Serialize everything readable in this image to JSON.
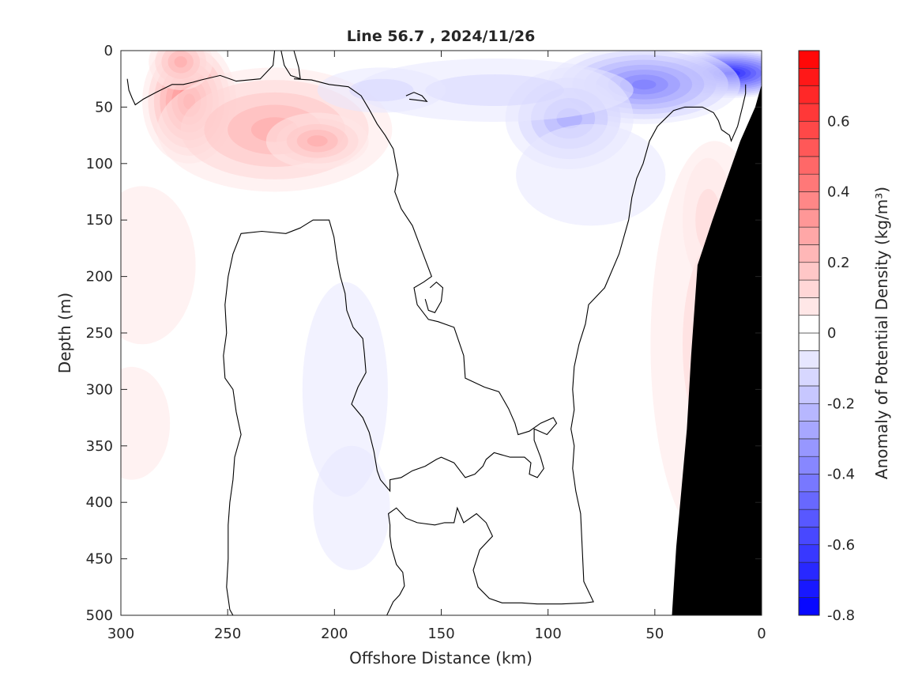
{
  "chart_data": {
    "type": "heatmap",
    "title": "Line 56.7 , 2024/11/26",
    "xlabel": "Offshore Distance (km)",
    "ylabel": "Depth (m)",
    "colorbar_label": "Anomaly of Potential Density (kg/m³)",
    "xlim": [
      300,
      0
    ],
    "ylim": [
      0,
      500
    ],
    "x_reversed": true,
    "y_reversed": true,
    "x_ticks": [
      300,
      250,
      200,
      150,
      100,
      50,
      0
    ],
    "y_ticks": [
      0,
      50,
      100,
      150,
      200,
      250,
      300,
      350,
      400,
      450,
      500
    ],
    "colorbar_range": [
      -0.8,
      0.8
    ],
    "colorbar_step": 0.05,
    "colorbar_ticks": [
      -0.8,
      -0.6,
      -0.4,
      -0.2,
      0,
      0.2,
      0.4,
      0.6
    ],
    "colors": {
      "positive": "#ff0000",
      "negative": "#0000ff",
      "zero": "#ffffff",
      "bathymetry": "#000000",
      "contour": "#000000"
    },
    "contour_level": 0,
    "blobs": [
      {
        "x": 268,
        "y": 45,
        "rx": 22,
        "ry": 55,
        "value": 0.43
      },
      {
        "x": 272,
        "y": 10,
        "rx": 15,
        "ry": 25,
        "value": 0.3
      },
      {
        "x": 228,
        "y": 70,
        "rx": 55,
        "ry": 55,
        "value": 0.25
      },
      {
        "x": 208,
        "y": 80,
        "rx": 24,
        "ry": 25,
        "value": 0.25
      },
      {
        "x": 290,
        "y": 190,
        "rx": 25,
        "ry": 70,
        "value": 0.07
      },
      {
        "x": 295,
        "y": 330,
        "rx": 18,
        "ry": 50,
        "value": 0.05
      },
      {
        "x": 22,
        "y": 260,
        "rx": 30,
        "ry": 180,
        "value": 0.1
      },
      {
        "x": 25,
        "y": 150,
        "rx": 12,
        "ry": 55,
        "value": 0.13
      },
      {
        "x": 15,
        "y": 20,
        "rx": 35,
        "ry": 22,
        "value": -0.72
      },
      {
        "x": 55,
        "y": 30,
        "rx": 45,
        "ry": 35,
        "value": -0.4
      },
      {
        "x": 90,
        "y": 60,
        "rx": 30,
        "ry": 45,
        "value": -0.27
      },
      {
        "x": 125,
        "y": 35,
        "rx": 65,
        "ry": 28,
        "value": -0.12
      },
      {
        "x": 178,
        "y": 35,
        "rx": 30,
        "ry": 20,
        "value": -0.1
      },
      {
        "x": 80,
        "y": 110,
        "rx": 35,
        "ry": 45,
        "value": -0.06
      },
      {
        "x": 195,
        "y": 300,
        "rx": 20,
        "ry": 95,
        "value": -0.06
      },
      {
        "x": 192,
        "y": 405,
        "rx": 18,
        "ry": 55,
        "value": -0.06
      }
    ],
    "bathymetry": [
      [
        33,
        500
      ],
      [
        35,
        440
      ],
      [
        40,
        335
      ],
      [
        42,
        270
      ],
      [
        45,
        190
      ],
      [
        52,
        150
      ],
      [
        65,
        80
      ],
      [
        72,
        50
      ],
      [
        75,
        30
      ],
      [
        75,
        500
      ]
    ],
    "contours": [
      [
        [
          4,
          25
        ],
        [
          5,
          35
        ],
        [
          7,
          42
        ],
        [
          9,
          48
        ],
        [
          14,
          43
        ],
        [
          22,
          37
        ],
        [
          32,
          30
        ],
        [
          39,
          30
        ],
        [
          45,
          28
        ],
        [
          50,
          26
        ],
        [
          62,
          22
        ],
        [
          72,
          27
        ],
        [
          87,
          25
        ],
        [
          95,
          13
        ],
        [
          96,
          0
        ]
      ],
      [
        [
          100,
          0
        ],
        [
          102,
          13
        ],
        [
          106,
          22
        ],
        [
          112,
          25
        ],
        [
          111,
          15
        ],
        [
          108,
          0
        ]
      ],
      [
        [
          108,
          25
        ],
        [
          119,
          26
        ],
        [
          130,
          30
        ],
        [
          142,
          32
        ],
        [
          150,
          40
        ],
        [
          155,
          52
        ],
        [
          160,
          65
        ],
        [
          165,
          75
        ],
        [
          170,
          87
        ],
        [
          173,
          110
        ],
        [
          171,
          125
        ],
        [
          175,
          140
        ],
        [
          182,
          155
        ],
        [
          186,
          170
        ],
        [
          190,
          185
        ],
        [
          194,
          200
        ],
        [
          189,
          205
        ],
        [
          183,
          210
        ],
        [
          185,
          225
        ],
        [
          192,
          238
        ],
        [
          198,
          240
        ],
        [
          208,
          245
        ],
        [
          214,
          270
        ],
        [
          215,
          290
        ],
        [
          227,
          298
        ],
        [
          236,
          302
        ],
        [
          242,
          317
        ],
        [
          246,
          330
        ],
        [
          248,
          340
        ],
        [
          255,
          337
        ],
        [
          262,
          330
        ],
        [
          270,
          325
        ],
        [
          272,
          330
        ],
        [
          266,
          340
        ],
        [
          258,
          335
        ],
        [
          258,
          345
        ],
        [
          262,
          360
        ],
        [
          264,
          370
        ],
        [
          260,
          378
        ],
        [
          255,
          375
        ],
        [
          256,
          365
        ],
        [
          252,
          360
        ],
        [
          243,
          360
        ],
        [
          233,
          356
        ],
        [
          228,
          362
        ],
        [
          226,
          368
        ],
        [
          221,
          375
        ],
        [
          215,
          378
        ],
        [
          208,
          365
        ],
        [
          200,
          360
        ],
        [
          197,
          362
        ],
        [
          190,
          368
        ],
        [
          182,
          372
        ],
        [
          175,
          378
        ],
        [
          168,
          380
        ],
        [
          168,
          390
        ],
        [
          162,
          380
        ],
        [
          160,
          372
        ],
        [
          158,
          355
        ],
        [
          155,
          338
        ],
        [
          151,
          325
        ],
        [
          144,
          313
        ],
        [
          148,
          298
        ],
        [
          153,
          285
        ],
        [
          152,
          268
        ],
        [
          151,
          255
        ],
        [
          145,
          245
        ],
        [
          141,
          230
        ],
        [
          140,
          215
        ],
        [
          137,
          200
        ],
        [
          135,
          185
        ],
        [
          133,
          165
        ],
        [
          130,
          150
        ],
        [
          120,
          150
        ],
        [
          112,
          157
        ],
        [
          103,
          162
        ],
        [
          88,
          160
        ],
        [
          75,
          162
        ],
        [
          70,
          180
        ],
        [
          67,
          200
        ],
        [
          65,
          225
        ],
        [
          66,
          250
        ],
        [
          64,
          270
        ],
        [
          65,
          290
        ],
        [
          70,
          300
        ],
        [
          72,
          320
        ],
        [
          75,
          340
        ],
        [
          71,
          360
        ],
        [
          70,
          380
        ],
        [
          68,
          400
        ],
        [
          67,
          420
        ],
        [
          67,
          450
        ],
        [
          66,
          475
        ],
        [
          68,
          495
        ],
        [
          70,
          500
        ]
      ],
      [
        [
          166,
          500
        ],
        [
          170,
          488
        ],
        [
          174,
          482
        ],
        [
          177,
          474
        ],
        [
          176,
          462
        ],
        [
          172,
          455
        ],
        [
          169,
          440
        ],
        [
          168,
          430
        ],
        [
          168,
          420
        ],
        [
          167,
          410
        ],
        [
          172,
          405
        ],
        [
          178,
          414
        ],
        [
          185,
          418
        ],
        [
          196,
          420
        ],
        [
          202,
          418
        ],
        [
          208,
          418
        ],
        [
          210,
          405
        ],
        [
          214,
          418
        ],
        [
          222,
          410
        ],
        [
          228,
          418
        ],
        [
          232,
          430
        ],
        [
          224,
          442
        ],
        [
          220,
          460
        ],
        [
          223,
          475
        ],
        [
          230,
          485
        ],
        [
          238,
          489
        ],
        [
          250,
          489
        ],
        [
          260,
          490
        ],
        [
          275,
          490
        ],
        [
          290,
          489
        ],
        [
          295,
          488
        ],
        [
          289,
          470
        ],
        [
          288,
          440
        ],
        [
          287,
          410
        ],
        [
          284,
          390
        ],
        [
          282,
          370
        ],
        [
          283,
          350
        ],
        [
          281,
          335
        ],
        [
          283,
          318
        ],
        [
          282,
          300
        ],
        [
          283,
          280
        ],
        [
          286,
          260
        ],
        [
          290,
          242
        ],
        [
          292,
          225
        ],
        [
          302,
          210
        ],
        [
          305,
          200
        ],
        [
          311,
          180
        ],
        [
          317,
          150
        ],
        [
          319,
          130
        ],
        [
          322,
          113
        ],
        [
          326,
          100
        ],
        [
          330,
          80
        ],
        [
          335,
          67
        ],
        [
          340,
          60
        ],
        [
          345,
          53
        ],
        [
          352,
          50
        ],
        [
          363,
          50
        ],
        [
          370,
          55
        ],
        [
          373,
          62
        ],
        [
          375,
          70
        ],
        [
          380,
          75
        ],
        [
          381,
          80
        ],
        [
          385,
          67
        ],
        [
          388,
          50
        ],
        [
          390,
          38
        ],
        [
          390,
          30
        ]
      ],
      [
        [
          178,
          40
        ],
        [
          183,
          37
        ],
        [
          188,
          40
        ],
        [
          191,
          45
        ],
        [
          186,
          44
        ],
        [
          180,
          43
        ]
      ],
      [
        [
          193,
          210
        ],
        [
          197,
          205
        ],
        [
          201,
          210
        ],
        [
          200,
          222
        ],
        [
          196,
          232
        ],
        [
          192,
          230
        ],
        [
          190,
          220
        ]
      ]
    ]
  }
}
